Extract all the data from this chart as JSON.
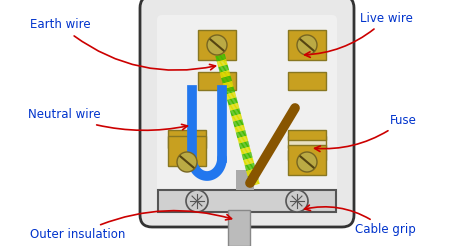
{
  "bg_color": "#ffffff",
  "label_color": "#0033cc",
  "arrow_color": "#cc0000",
  "plug_body_facecolor": "#e8e8e8",
  "plug_body_edgecolor": "#333333",
  "terminal_face": "#c8a020",
  "terminal_edge": "#887722",
  "screw_face": "#bbaa44",
  "screw_edge": "#776622",
  "fuse_body": "#e8e0c0",
  "fuse_cap": "#c8a020",
  "grip_bar_face": "#d0d0d0",
  "grip_bar_edge": "#555555",
  "cable_face": "#bbbbbb",
  "cable_edge": "#888888",
  "inner_bg": "#d8d8d8",
  "earth_green": "#44bb00",
  "earth_yellow": "#dddd00",
  "neutral_blue": "#2277ee",
  "live_brown": "#885500",
  "label_fontsize": 8.5,
  "figsize": [
    4.68,
    2.46
  ],
  "dpi": 100,
  "labels": {
    "earth_wire": "Earth wire",
    "live_wire": "Live wire",
    "neutral_wire": "Neutral wire",
    "fuse": "Fuse",
    "outer_insulation": "Outer insulation",
    "cable_grip": "Cable grip"
  }
}
